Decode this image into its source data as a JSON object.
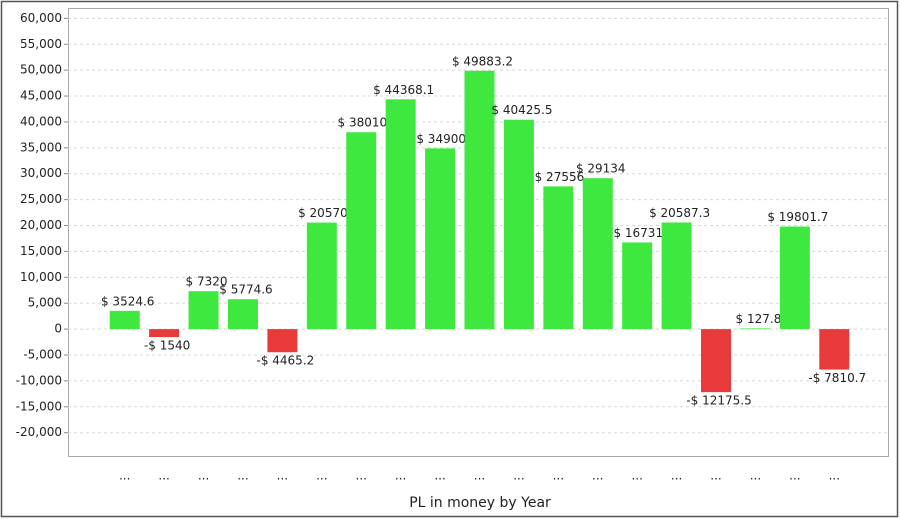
{
  "chart_data": {
    "type": "bar",
    "x_label": "PL in money by Year",
    "categories": [
      "...",
      "...",
      "...",
      "...",
      "...",
      "...",
      "...",
      "...",
      "...",
      "...",
      "...",
      "...",
      "...",
      "...",
      "...",
      "...",
      "...",
      "...",
      "..."
    ],
    "values": [
      3524.6,
      -1540,
      7320,
      5774.6,
      -4465.2,
      20570,
      38010,
      44368.1,
      34900,
      49883.2,
      40425.5,
      27556,
      29134,
      16731,
      20587.3,
      -12175.5,
      127.8,
      19801.7,
      -7810.7
    ],
    "value_labels": [
      "$ 3524.6",
      "-$ 1540",
      "$ 7320",
      "$ 5774.6",
      "-$ 4465.2",
      "$ 20570.",
      "$ 38010.",
      "$ 44368.1",
      "$ 34900.",
      "$ 49883.2",
      "$ 40425.5",
      "$ 27556.",
      "$ 29134",
      "$ 16731.",
      "$ 20587.3",
      "-$ 12175.5",
      "$ 127.8",
      "$ 19801.7",
      "-$ 7810.7"
    ],
    "positive_color": "#3ee83e",
    "negative_color": "#e83a3a",
    "ylim": [
      -24500,
      62000
    ],
    "yticks": [
      {
        "value": -20000,
        "label": "-20,000"
      },
      {
        "value": -15000,
        "label": "-15,000"
      },
      {
        "value": -10000,
        "label": "-10,000"
      },
      {
        "value": -5000,
        "label": "-5,000"
      },
      0,
      {
        "value": 5000,
        "label": "5,000"
      },
      {
        "value": 10000,
        "label": "10,000"
      },
      {
        "value": 15000,
        "label": "15,000"
      },
      {
        "value": 20000,
        "label": "20,000"
      },
      {
        "value": 25000,
        "label": "25,000"
      },
      {
        "value": 30000,
        "label": "30,000"
      },
      {
        "value": 35000,
        "label": "35,000"
      },
      {
        "value": 40000,
        "label": "40,000"
      },
      {
        "value": 45000,
        "label": "45,000"
      },
      {
        "value": 50000,
        "label": "50,000"
      },
      {
        "value": 55000,
        "label": "55,000"
      },
      {
        "value": 60000,
        "label": "60,000"
      }
    ],
    "grid": true
  }
}
